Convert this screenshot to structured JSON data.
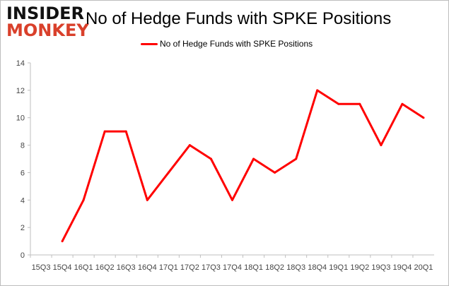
{
  "logo": {
    "line1": "INSIDER",
    "line2": "MONKEY"
  },
  "chart_data": {
    "type": "line",
    "title": "No of Hedge Funds with SPKE Positions",
    "legend": {
      "position": "top",
      "entries": [
        "No of Hedge Funds with SPKE Positions"
      ]
    },
    "categories": [
      "15Q3",
      "15Q4",
      "16Q1",
      "16Q2",
      "16Q3",
      "16Q4",
      "17Q1",
      "17Q2",
      "17Q3",
      "17Q4",
      "18Q1",
      "18Q2",
      "18Q3",
      "18Q4",
      "19Q1",
      "19Q2",
      "19Q3",
      "19Q4",
      "20Q1"
    ],
    "series": [
      {
        "name": "No of Hedge Funds with SPKE Positions",
        "color": "#ff0000",
        "values": [
          null,
          1,
          4,
          9,
          9,
          4,
          6,
          8,
          7,
          4,
          7,
          6,
          7,
          12,
          11,
          11,
          8,
          11,
          10
        ]
      }
    ],
    "ylim": [
      0,
      14
    ],
    "yticks": [
      0,
      2,
      4,
      6,
      8,
      10,
      12,
      14
    ],
    "grid": false
  }
}
